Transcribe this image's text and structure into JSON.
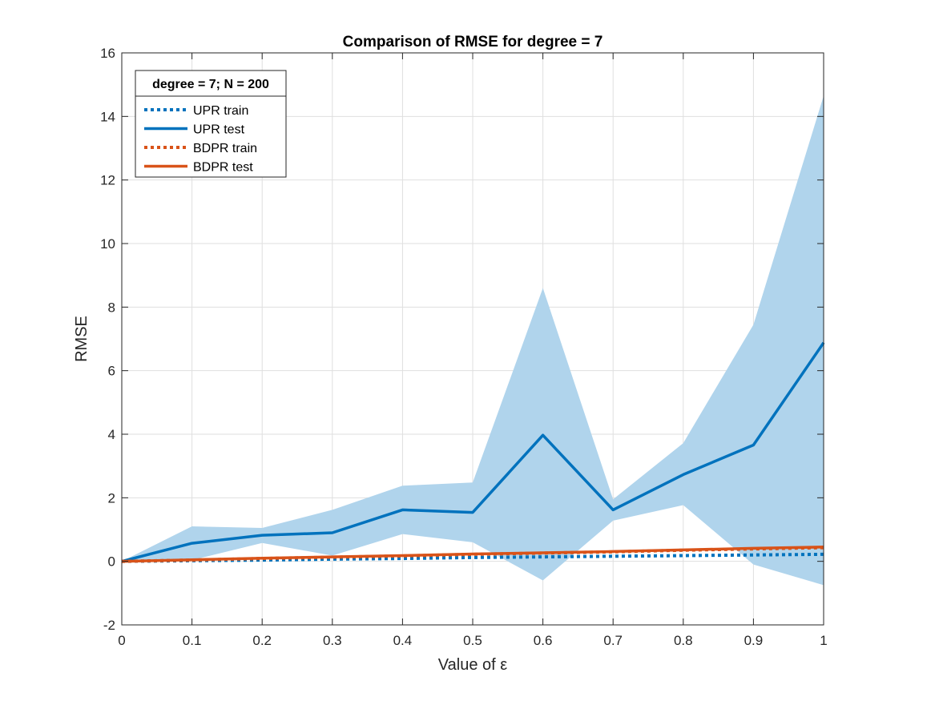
{
  "chart_data": {
    "type": "line",
    "title": "Comparison of RMSE for degree = 7",
    "xlabel": "Value of ε",
    "ylabel": "RMSE",
    "xlim": [
      0,
      1
    ],
    "ylim": [
      -2,
      16
    ],
    "x_ticks": [
      "0",
      "0.1",
      "0.2",
      "0.3",
      "0.4",
      "0.5",
      "0.6",
      "0.7",
      "0.8",
      "0.9",
      "1"
    ],
    "y_ticks": [
      "-2",
      "0",
      "2",
      "4",
      "6",
      "8",
      "10",
      "12",
      "14",
      "16"
    ],
    "grid": true,
    "legend_position": "top-left",
    "legend_title": "degree = 7; N = 200",
    "x": [
      0,
      0.1,
      0.2,
      0.3,
      0.4,
      0.5,
      0.6,
      0.7,
      0.8,
      0.9,
      1
    ],
    "band": {
      "color": "#b0d4ec",
      "upper": [
        0,
        1.1,
        1.05,
        1.62,
        2.38,
        2.48,
        8.6,
        1.95,
        3.72,
        7.45,
        14.65
      ],
      "lower": [
        0,
        0.04,
        0.58,
        0.18,
        0.86,
        0.6,
        -0.6,
        1.28,
        1.77,
        -0.1,
        -0.75
      ]
    },
    "series": [
      {
        "name": "UPR train",
        "style": "dotted",
        "color": "#0072bd",
        "values": [
          0,
          0.02,
          0.04,
          0.07,
          0.09,
          0.12,
          0.14,
          0.16,
          0.18,
          0.2,
          0.22
        ]
      },
      {
        "name": "UPR test",
        "style": "solid",
        "color": "#0072bd",
        "values": [
          0,
          0.57,
          0.82,
          0.9,
          1.62,
          1.54,
          3.97,
          1.62,
          2.73,
          3.66,
          6.88
        ]
      },
      {
        "name": "BDPR train",
        "style": "dotted",
        "color": "#d95319",
        "values": [
          0,
          0.04,
          0.09,
          0.13,
          0.17,
          0.22,
          0.26,
          0.3,
          0.35,
          0.39,
          0.43
        ]
      },
      {
        "name": "BDPR test",
        "style": "solid",
        "color": "#d95319",
        "values": [
          0,
          0.05,
          0.1,
          0.14,
          0.18,
          0.23,
          0.27,
          0.31,
          0.36,
          0.41,
          0.45
        ]
      }
    ]
  }
}
